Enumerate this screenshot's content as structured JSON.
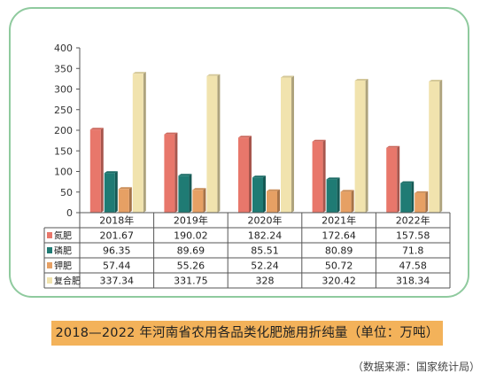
{
  "caption": "2018—2022 年河南省农用各品类化肥施用折纯量（单位：万吨）",
  "source": "（数据来源：国家统计局）",
  "colors": {
    "frame": "#8fca9e",
    "caption_bg": "#f3b25a"
  },
  "chart_data": {
    "type": "bar",
    "title": "",
    "xlabel": "",
    "ylabel": "",
    "ylim": [
      0,
      400
    ],
    "yticks": [
      0,
      50,
      100,
      150,
      200,
      250,
      300,
      350,
      400
    ],
    "grid": false,
    "legend": "data-table",
    "categories": [
      "2018年",
      "2019年",
      "2020年",
      "2021年",
      "2022年"
    ],
    "series": [
      {
        "name": "氮肥",
        "color": "#e8776b",
        "values": [
          201.67,
          190.02,
          182.24,
          172.64,
          157.58
        ],
        "labels": [
          "201.67",
          "190.02",
          "182.24",
          "172.64",
          "157.58"
        ]
      },
      {
        "name": "磷肥",
        "color": "#1f7b74",
        "values": [
          96.35,
          89.69,
          85.51,
          80.89,
          71.8
        ],
        "labels": [
          "96.35",
          "89.69",
          "85.51",
          "80.89",
          "71.8"
        ]
      },
      {
        "name": "钾肥",
        "color": "#e6a064",
        "values": [
          57.44,
          55.26,
          52.24,
          50.72,
          47.58
        ],
        "labels": [
          "57.44",
          "55.26",
          "52.24",
          "50.72",
          "47.58"
        ]
      },
      {
        "name": "复合肥",
        "color": "#f1e3ae",
        "values": [
          337.34,
          331.75,
          328,
          320.42,
          318.34
        ],
        "labels": [
          "337.34",
          "331.75",
          "328",
          "320.42",
          "318.34"
        ]
      }
    ]
  }
}
